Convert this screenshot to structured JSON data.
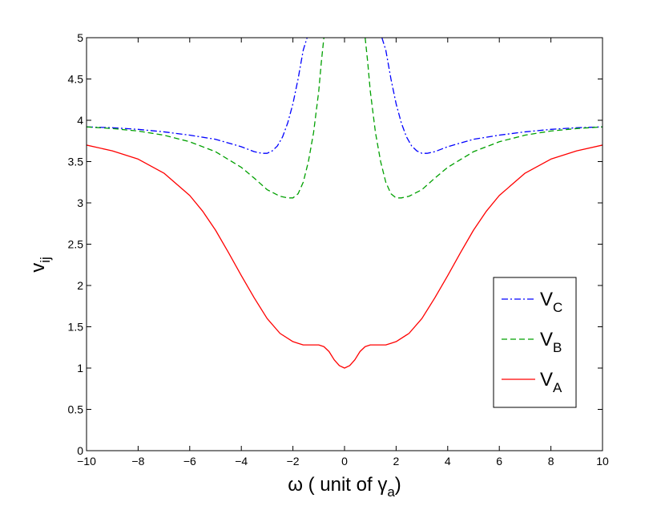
{
  "chart_data": {
    "type": "line",
    "xlabel": {
      "main": "ω ( unit of γ",
      "sub": "a",
      "tail": ")"
    },
    "ylabel": {
      "main": "v",
      "sub": "ij"
    },
    "xlim": [
      -10,
      10
    ],
    "ylim": [
      0,
      5
    ],
    "xticks": [
      -10,
      -8,
      -6,
      -4,
      -2,
      0,
      2,
      4,
      6,
      8,
      10
    ],
    "yticks": [
      0,
      0.5,
      1,
      1.5,
      2,
      2.5,
      3,
      3.5,
      4,
      4.5,
      5
    ],
    "xtick_labels": [
      "−10",
      "−8",
      "−6",
      "−4",
      "−2",
      "0",
      "2",
      "4",
      "6",
      "8",
      "10"
    ],
    "ytick_labels": [
      "0",
      "0.5",
      "1",
      "1.5",
      "2",
      "2.5",
      "3",
      "3.5",
      "4",
      "4.5",
      "5"
    ],
    "grid": false,
    "legend_position": "right",
    "series": [
      {
        "name": "V",
        "sub": "C",
        "color": "#0000ff",
        "dash": "dashdot",
        "segments": [
          {
            "x": [
              -10,
              -9,
              -8,
              -7,
              -6,
              -5,
              -4,
              -3.5,
              -3.2,
              -3.0,
              -2.8,
              -2.6,
              -2.4,
              -2.2,
              -2.0,
              -1.8,
              -1.6,
              -1.45
            ],
            "y": [
              3.92,
              3.91,
              3.89,
              3.86,
              3.82,
              3.77,
              3.68,
              3.62,
              3.6,
              3.6,
              3.63,
              3.69,
              3.8,
              3.97,
              4.2,
              4.5,
              4.85,
              5.0
            ]
          },
          {
            "x": [
              1.45,
              1.6,
              1.8,
              2.0,
              2.2,
              2.4,
              2.6,
              2.8,
              3.0,
              3.2,
              3.5,
              4,
              5,
              6,
              7,
              8,
              9,
              10
            ],
            "y": [
              5.0,
              4.85,
              4.5,
              4.2,
              3.97,
              3.8,
              3.69,
              3.63,
              3.6,
              3.6,
              3.62,
              3.68,
              3.77,
              3.82,
              3.86,
              3.89,
              3.91,
              3.92
            ]
          }
        ]
      },
      {
        "name": "V",
        "sub": "B",
        "color": "#00a000",
        "dash": "dashed",
        "segments": [
          {
            "x": [
              -10,
              -9,
              -8,
              -7,
              -6,
              -5,
              -4,
              -3.5,
              -3.0,
              -2.5,
              -2.2,
              -2.0,
              -1.8,
              -1.6,
              -1.4,
              -1.2,
              -1.0,
              -0.9,
              -0.8
            ],
            "y": [
              3.92,
              3.9,
              3.87,
              3.82,
              3.74,
              3.62,
              3.43,
              3.3,
              3.16,
              3.08,
              3.06,
              3.06,
              3.11,
              3.25,
              3.5,
              3.85,
              4.35,
              4.7,
              5.0
            ]
          },
          {
            "x": [
              0.8,
              0.9,
              1.0,
              1.2,
              1.4,
              1.6,
              1.8,
              2.0,
              2.2,
              2.5,
              3.0,
              3.5,
              4,
              5,
              6,
              7,
              8,
              9,
              10
            ],
            "y": [
              5.0,
              4.7,
              4.35,
              3.85,
              3.5,
              3.25,
              3.11,
              3.06,
              3.06,
              3.08,
              3.16,
              3.3,
              3.43,
              3.62,
              3.74,
              3.82,
              3.87,
              3.9,
              3.92
            ]
          }
        ]
      },
      {
        "name": "V",
        "sub": "A",
        "color": "#ff0000",
        "dash": "solid",
        "segments": [
          {
            "x": [
              -10,
              -9,
              -8,
              -7,
              -6,
              -5.5,
              -5,
              -4.5,
              -4,
              -3.5,
              -3,
              -2.5,
              -2,
              -1.8,
              -1.6,
              -1.4,
              -1.2,
              -1.0,
              -0.8,
              -0.6,
              -0.4,
              -0.2,
              0,
              0.2,
              0.4,
              0.6,
              0.8,
              1.0,
              1.2,
              1.4,
              1.6,
              1.8,
              2,
              2.5,
              3,
              3.5,
              4,
              4.5,
              5,
              5.5,
              6,
              7,
              8,
              9,
              10
            ],
            "y": [
              3.7,
              3.63,
              3.53,
              3.36,
              3.09,
              2.9,
              2.67,
              2.4,
              2.12,
              1.85,
              1.6,
              1.42,
              1.32,
              1.3,
              1.28,
              1.28,
              1.28,
              1.28,
              1.26,
              1.2,
              1.1,
              1.03,
              1.0,
              1.03,
              1.1,
              1.2,
              1.26,
              1.28,
              1.28,
              1.28,
              1.28,
              1.3,
              1.32,
              1.42,
              1.6,
              1.85,
              2.12,
              2.4,
              2.67,
              2.9,
              3.09,
              3.36,
              3.53,
              3.63,
              3.7
            ]
          }
        ]
      }
    ]
  }
}
